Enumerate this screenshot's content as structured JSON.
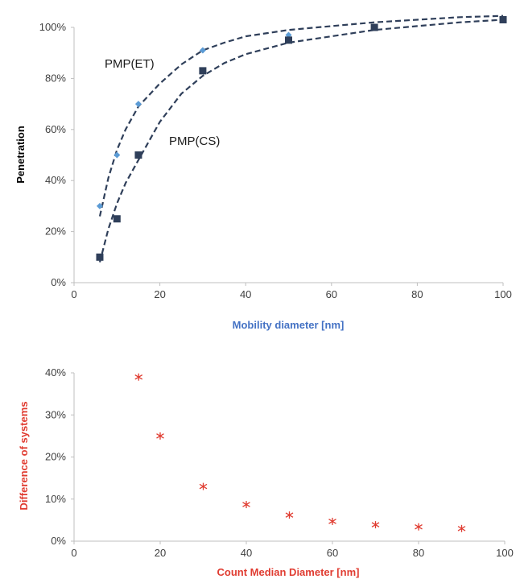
{
  "chart_data": [
    {
      "type": "scatter",
      "xlabel": "Mobility diameter [nm]",
      "ylabel": "Penetration",
      "xlim": [
        0,
        100
      ],
      "ylim": [
        0,
        1.0
      ],
      "x_ticks": [
        "0",
        "20",
        "40",
        "60",
        "80",
        "100"
      ],
      "y_ticks": [
        "0%",
        "20%",
        "40%",
        "60%",
        "80%",
        "100%"
      ],
      "annotations": [
        "PMP(ET)",
        "PMP(CS)"
      ],
      "grid": false,
      "series": [
        {
          "name": "PMP(ET)",
          "marker": "diamond",
          "color": "#5b9bd5",
          "x": [
            6,
            10,
            15,
            30,
            50,
            70,
            100
          ],
          "y": [
            0.3,
            0.5,
            0.7,
            0.91,
            0.97,
            1.0,
            1.03
          ],
          "trend": {
            "style": "dashed",
            "color": "#2f3f5a",
            "x": [
              6,
              8,
              10,
              12,
              15,
              20,
              25,
              30,
              35,
              40,
              50,
              60,
              70,
              80,
              90,
              100
            ],
            "y": [
              0.26,
              0.41,
              0.52,
              0.6,
              0.69,
              0.78,
              0.855,
              0.91,
              0.94,
              0.965,
              0.99,
              1.005,
              1.02,
              1.03,
              1.04,
              1.045
            ]
          }
        },
        {
          "name": "PMP(CS)",
          "marker": "square",
          "color": "#2f3f5a",
          "x": [
            6,
            10,
            15,
            30,
            50,
            70,
            100
          ],
          "y": [
            0.1,
            0.25,
            0.5,
            0.83,
            0.95,
            1.0,
            1.03
          ],
          "trend": {
            "style": "dashed",
            "color": "#2f3f5a",
            "x": [
              6,
              8,
              10,
              12,
              15,
              20,
              25,
              30,
              35,
              40,
              50,
              60,
              70,
              80,
              90,
              100
            ],
            "y": [
              0.08,
              0.21,
              0.31,
              0.39,
              0.48,
              0.63,
              0.74,
              0.81,
              0.86,
              0.895,
              0.94,
              0.965,
              0.99,
              1.005,
              1.02,
              1.03
            ]
          }
        }
      ]
    },
    {
      "type": "scatter",
      "xlabel": "Count Median Diameter [nm]",
      "ylabel": "Difference of systems",
      "xlim": [
        0,
        100
      ],
      "ylim": [
        0,
        0.4
      ],
      "x_ticks": [
        "0",
        "20",
        "40",
        "60",
        "80",
        "100"
      ],
      "y_ticks": [
        "0%",
        "10%",
        "20%",
        "30%",
        "40%"
      ],
      "grid": false,
      "series": [
        {
          "marker": "asterisk",
          "color": "#e03c31",
          "x": [
            15,
            20,
            30,
            40,
            50,
            60,
            70,
            80,
            90
          ],
          "y": [
            0.39,
            0.25,
            0.13,
            0.087,
            0.062,
            0.047,
            0.039,
            0.034,
            0.03
          ]
        }
      ]
    }
  ],
  "colors": {
    "axis": "#bfbfbf",
    "tick_text": "#404040",
    "top_xlabel": "#4472c4",
    "top_ylabel": "#000000",
    "bottom_label": "#e03c31"
  }
}
